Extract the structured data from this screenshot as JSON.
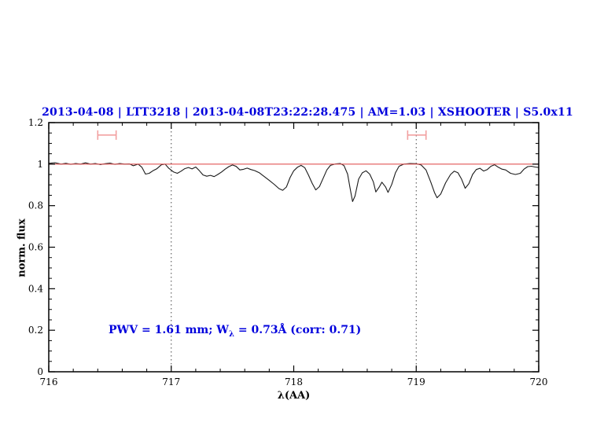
{
  "title": "2013-04-08 | LTT3218 | 2013-04-08T23:22:28.475 | AM=1.03 | XSHOOTER | S5.0x11",
  "annotation": {
    "prefix": "PWV = 1.61 mm; W",
    "sub": "λ",
    "suffix": " = 0.73Å (corr: 0.71)"
  },
  "colors": {
    "title_text": "#0000dd",
    "annotation_text": "#0000dd",
    "continuum_line": "#e05555",
    "band_marker": "#f2a0a0",
    "spectrum_line": "#1a1a1a",
    "dotted_line": "#444444",
    "axis": "#000000"
  },
  "chart_data": {
    "type": "line",
    "title": "2013-04-08 | LTT3218 | 2013-04-08T23:22:28.475 | AM=1.03 | XSHOOTER | S5.0x11",
    "xlabel": "λ(AA)",
    "ylabel": "norm. flux",
    "xlim": [
      716,
      720
    ],
    "ylim": [
      0,
      1.2
    ],
    "grid": false,
    "x_major_ticks": [
      716,
      717,
      718,
      719,
      720
    ],
    "x_tick_labels": [
      "716",
      "717",
      "718",
      "719",
      "720"
    ],
    "x_minor_step": 0.2,
    "y_major_ticks": [
      0,
      0.2,
      0.4,
      0.6,
      0.8,
      1,
      1.2
    ],
    "y_tick_labels": [
      "0",
      "0.2",
      "0.4",
      "0.6",
      "0.8",
      "1",
      "1.2"
    ],
    "y_minor_step": 0.05,
    "reference_lines": {
      "continuum_flux": 1.0,
      "vertical_dotted_x": [
        717.0,
        719.0
      ]
    },
    "markers": [
      {
        "name": "band-marker-left",
        "x_min": 716.4,
        "x_max": 716.55,
        "flux": 1.14
      },
      {
        "name": "band-marker-right",
        "x_min": 718.93,
        "x_max": 719.08,
        "flux": 1.14
      }
    ],
    "series": [
      {
        "name": "normalized spectrum",
        "points": [
          [
            716.0,
            1.004
          ],
          [
            716.05,
            1.007
          ],
          [
            716.1,
            1.0
          ],
          [
            716.14,
            1.004
          ],
          [
            716.18,
            0.999
          ],
          [
            716.22,
            1.003
          ],
          [
            716.26,
            1.0
          ],
          [
            716.3,
            1.006
          ],
          [
            716.34,
            1.0
          ],
          [
            716.38,
            1.003
          ],
          [
            716.42,
            0.998
          ],
          [
            716.46,
            1.002
          ],
          [
            716.5,
            1.005
          ],
          [
            716.54,
            0.999
          ],
          [
            716.58,
            1.003
          ],
          [
            716.62,
            1.0
          ],
          [
            716.66,
            1.001
          ],
          [
            716.69,
            0.992
          ],
          [
            716.73,
            1.0
          ],
          [
            716.76,
            0.985
          ],
          [
            716.79,
            0.952
          ],
          [
            716.82,
            0.956
          ],
          [
            716.85,
            0.968
          ],
          [
            716.88,
            0.977
          ],
          [
            716.92,
            0.997
          ],
          [
            716.95,
            1.0
          ],
          [
            716.98,
            0.98
          ],
          [
            717.02,
            0.962
          ],
          [
            717.05,
            0.956
          ],
          [
            717.08,
            0.966
          ],
          [
            717.11,
            0.978
          ],
          [
            717.14,
            0.984
          ],
          [
            717.17,
            0.977
          ],
          [
            717.2,
            0.986
          ],
          [
            717.23,
            0.968
          ],
          [
            717.26,
            0.948
          ],
          [
            717.29,
            0.942
          ],
          [
            717.32,
            0.946
          ],
          [
            717.35,
            0.94
          ],
          [
            717.38,
            0.95
          ],
          [
            717.41,
            0.962
          ],
          [
            717.44,
            0.976
          ],
          [
            717.47,
            0.988
          ],
          [
            717.5,
            0.996
          ],
          [
            717.53,
            0.989
          ],
          [
            717.56,
            0.972
          ],
          [
            717.59,
            0.975
          ],
          [
            717.62,
            0.981
          ],
          [
            717.65,
            0.974
          ],
          [
            717.68,
            0.969
          ],
          [
            717.72,
            0.958
          ],
          [
            717.76,
            0.94
          ],
          [
            717.8,
            0.922
          ],
          [
            717.84,
            0.903
          ],
          [
            717.88,
            0.882
          ],
          [
            717.91,
            0.874
          ],
          [
            717.94,
            0.89
          ],
          [
            717.97,
            0.935
          ],
          [
            718.0,
            0.968
          ],
          [
            718.03,
            0.985
          ],
          [
            718.06,
            0.994
          ],
          [
            718.09,
            0.983
          ],
          [
            718.12,
            0.948
          ],
          [
            718.15,
            0.908
          ],
          [
            718.18,
            0.876
          ],
          [
            718.21,
            0.892
          ],
          [
            718.24,
            0.932
          ],
          [
            718.27,
            0.972
          ],
          [
            718.3,
            0.994
          ],
          [
            718.34,
            1.001
          ],
          [
            718.38,
            1.003
          ],
          [
            718.41,
            0.993
          ],
          [
            718.44,
            0.952
          ],
          [
            718.46,
            0.885
          ],
          [
            718.48,
            0.82
          ],
          [
            718.5,
            0.846
          ],
          [
            718.53,
            0.928
          ],
          [
            718.56,
            0.958
          ],
          [
            718.59,
            0.968
          ],
          [
            718.62,
            0.952
          ],
          [
            718.65,
            0.915
          ],
          [
            718.67,
            0.866
          ],
          [
            718.7,
            0.892
          ],
          [
            718.72,
            0.913
          ],
          [
            718.75,
            0.89
          ],
          [
            718.77,
            0.864
          ],
          [
            718.8,
            0.902
          ],
          [
            718.83,
            0.958
          ],
          [
            718.86,
            0.99
          ],
          [
            718.9,
            1.0
          ],
          [
            718.95,
            1.003
          ],
          [
            719.0,
            1.002
          ],
          [
            719.04,
            0.996
          ],
          [
            719.08,
            0.972
          ],
          [
            719.12,
            0.912
          ],
          [
            719.15,
            0.862
          ],
          [
            719.17,
            0.838
          ],
          [
            719.2,
            0.856
          ],
          [
            719.24,
            0.91
          ],
          [
            719.28,
            0.95
          ],
          [
            719.31,
            0.966
          ],
          [
            719.34,
            0.959
          ],
          [
            719.37,
            0.928
          ],
          [
            719.4,
            0.884
          ],
          [
            719.43,
            0.906
          ],
          [
            719.46,
            0.95
          ],
          [
            719.49,
            0.974
          ],
          [
            719.52,
            0.98
          ],
          [
            719.55,
            0.967
          ],
          [
            719.58,
            0.974
          ],
          [
            719.61,
            0.99
          ],
          [
            719.64,
            0.997
          ],
          [
            719.67,
            0.985
          ],
          [
            719.7,
            0.976
          ],
          [
            719.73,
            0.972
          ],
          [
            719.77,
            0.956
          ],
          [
            719.81,
            0.95
          ],
          [
            719.85,
            0.956
          ],
          [
            719.88,
            0.976
          ],
          [
            719.91,
            0.988
          ],
          [
            719.94,
            0.99
          ],
          [
            719.97,
            0.986
          ],
          [
            720.0,
            0.984
          ]
        ]
      }
    ]
  }
}
